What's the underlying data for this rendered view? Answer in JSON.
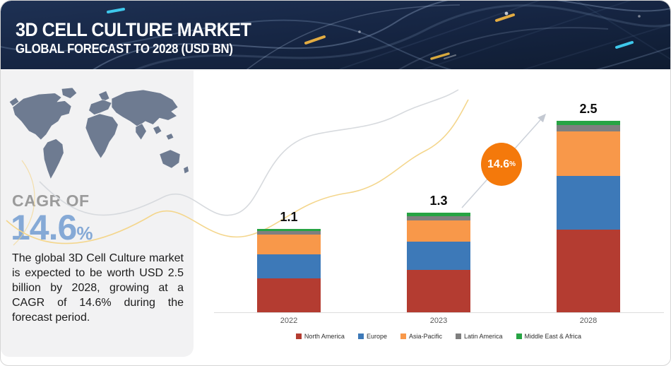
{
  "header": {
    "title": "3D CELL CULTURE MARKET",
    "subtitle": "GLOBAL FORECAST TO 2028 (USD BN)",
    "background_color": "#16253f"
  },
  "sidebar": {
    "cagr_label": "CAGR OF",
    "cagr_value": "14.6",
    "cagr_percent_sign": "%",
    "cagr_color": "#85a9d6",
    "description": "The global 3D Cell Culture market is expected to be worth USD 2.5 billion by 2028, growing at a CAGR of 14.6% during the forecast period.",
    "map_color": "#6e7b91"
  },
  "chart_data": {
    "type": "bar",
    "stacked": true,
    "categories": [
      "2022",
      "2023",
      "2028"
    ],
    "total_labels": [
      "1.1",
      "1.3",
      "2.5"
    ],
    "totals": [
      1.1,
      1.3,
      2.5
    ],
    "ylim": [
      0,
      2.5
    ],
    "legend_position": "bottom",
    "grid": false,
    "axis_baseline_color": "#dcdcdc",
    "series": [
      {
        "name": "North America",
        "color": "#b43c31",
        "values": [
          0.44,
          0.55,
          1.08
        ]
      },
      {
        "name": "Europe",
        "color": "#3d79b8",
        "values": [
          0.32,
          0.37,
          0.7
        ]
      },
      {
        "name": "Asia-Pacific",
        "color": "#f8984a",
        "values": [
          0.25,
          0.28,
          0.58
        ]
      },
      {
        "name": "Latin America",
        "color": "#7f7f7f",
        "values": [
          0.05,
          0.05,
          0.08
        ]
      },
      {
        "name": "Middle East & Africa",
        "color": "#27a444",
        "values": [
          0.03,
          0.05,
          0.06
        ]
      }
    ],
    "annotation": {
      "growth_value": "14.6",
      "growth_percent_sign": "%",
      "badge_color": "#f4790b"
    }
  }
}
